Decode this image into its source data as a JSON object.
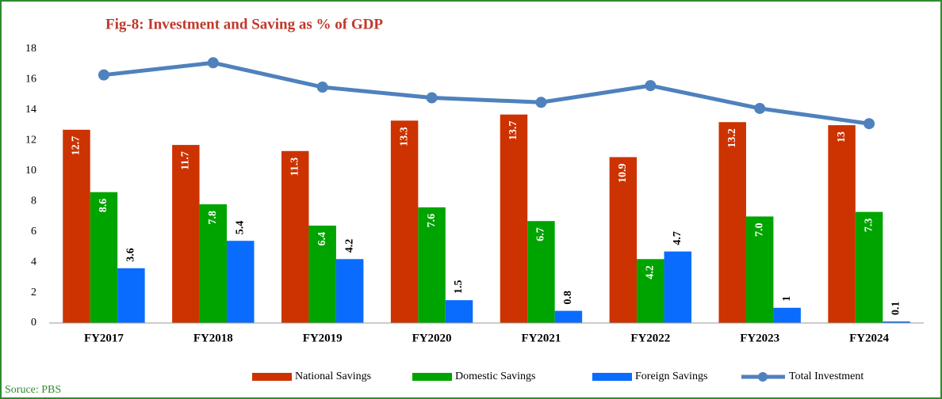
{
  "chart_data": {
    "type": "bar_line",
    "title": "Fig-8: Investment and Saving as % of GDP",
    "source": "Soruce: PBS",
    "categories": [
      "FY2017",
      "FY2018",
      "FY2019",
      "FY2020",
      "FY2021",
      "FY2022",
      "FY2023",
      "FY2024"
    ],
    "series": [
      {
        "name": "National Savings",
        "color": "#cc3300",
        "type": "bar",
        "values": [
          12.7,
          11.7,
          11.3,
          13.3,
          13.7,
          10.9,
          13.2,
          13
        ]
      },
      {
        "name": "Domestic Savings",
        "color": "#00a400",
        "type": "bar",
        "values": [
          8.6,
          7.8,
          6.4,
          7.6,
          6.7,
          4.2,
          7.0,
          7.3
        ],
        "value_labels": [
          "8.6",
          "7.8",
          "6.4",
          "7.6",
          "6.7",
          "4.2",
          "7.0",
          "7.3"
        ]
      },
      {
        "name": "Foreign Savings",
        "color": "#0a6cff",
        "type": "bar",
        "values": [
          3.6,
          5.4,
          4.2,
          1.5,
          0.8,
          4.7,
          1,
          0.1
        ]
      },
      {
        "name": "Total Investment",
        "color": "#4f81bd",
        "type": "line",
        "values": [
          16.3,
          17.1,
          15.5,
          14.8,
          14.5,
          15.6,
          14.1,
          13.1
        ]
      }
    ],
    "ylim": [
      0,
      18
    ],
    "yticks": [
      0,
      2,
      4,
      6,
      8,
      10,
      12,
      14,
      16,
      18
    ],
    "legend": "bottom"
  }
}
